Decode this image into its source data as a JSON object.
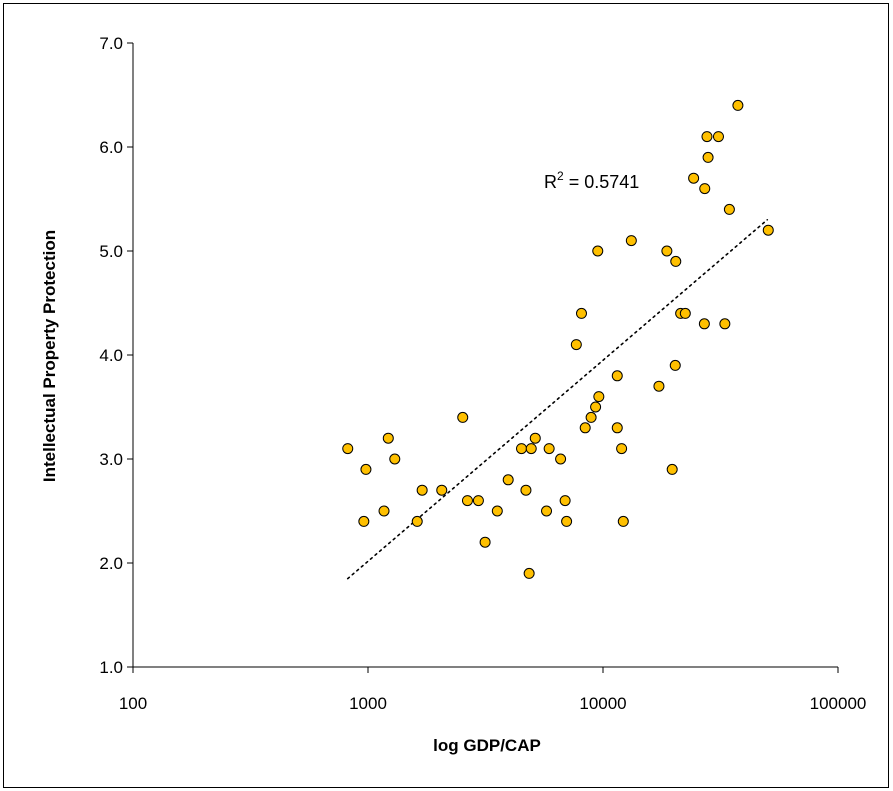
{
  "chart_data": {
    "type": "scatter",
    "title": "",
    "xlabel": "log GDP/CAP",
    "ylabel": "Intellectual Property Protection",
    "x_scale": "log",
    "xlim": [
      100,
      100000
    ],
    "ylim": [
      1.0,
      7.0
    ],
    "x_ticks": [
      "100",
      "1000",
      "10000",
      "100000"
    ],
    "y_ticks": [
      "1.0",
      "2.0",
      "3.0",
      "4.0",
      "5.0",
      "6.0",
      "7.0"
    ],
    "grid": false,
    "legend": "none",
    "marker_color": "#FFC000",
    "marker_edge_color": "#000000",
    "trendline": {
      "style": "dotted",
      "r2_label": "R² = 0.5741",
      "r2_base": "R",
      "r2_sup": "2",
      "r2_rest": " = 0.5741",
      "start": [
        820,
        1.85
      ],
      "end": [
        50000,
        5.3
      ]
    },
    "points": [
      [
        820,
        3.1
      ],
      [
        960,
        2.4
      ],
      [
        980,
        2.9
      ],
      [
        1170,
        2.5
      ],
      [
        1220,
        3.2
      ],
      [
        1300,
        3.0
      ],
      [
        1620,
        2.4
      ],
      [
        1700,
        2.7
      ],
      [
        2060,
        2.7
      ],
      [
        2530,
        3.4
      ],
      [
        2650,
        2.6
      ],
      [
        2950,
        2.6
      ],
      [
        3150,
        2.2
      ],
      [
        3550,
        2.5
      ],
      [
        3950,
        2.8
      ],
      [
        4500,
        3.1
      ],
      [
        4700,
        2.7
      ],
      [
        4850,
        1.9
      ],
      [
        4950,
        3.1
      ],
      [
        5150,
        3.2
      ],
      [
        5750,
        2.5
      ],
      [
        5900,
        3.1
      ],
      [
        6600,
        3.0
      ],
      [
        6900,
        2.6
      ],
      [
        7000,
        2.4
      ],
      [
        7700,
        4.1
      ],
      [
        8100,
        4.4
      ],
      [
        8400,
        3.3
      ],
      [
        8900,
        3.4
      ],
      [
        9300,
        3.5
      ],
      [
        9600,
        3.6
      ],
      [
        9500,
        5.0
      ],
      [
        11500,
        3.8
      ],
      [
        11500,
        3.3
      ],
      [
        12000,
        3.1
      ],
      [
        12200,
        2.4
      ],
      [
        13200,
        5.1
      ],
      [
        17300,
        3.7
      ],
      [
        18700,
        5.0
      ],
      [
        19700,
        2.9
      ],
      [
        20300,
        3.9
      ],
      [
        20400,
        4.9
      ],
      [
        21400,
        4.4
      ],
      [
        22400,
        4.4
      ],
      [
        24300,
        5.7
      ],
      [
        27000,
        4.3
      ],
      [
        27100,
        5.6
      ],
      [
        27700,
        6.1
      ],
      [
        28000,
        5.9
      ],
      [
        31000,
        6.1
      ],
      [
        33000,
        4.3
      ],
      [
        34500,
        5.4
      ],
      [
        37500,
        6.4
      ],
      [
        50500,
        5.2
      ]
    ]
  }
}
